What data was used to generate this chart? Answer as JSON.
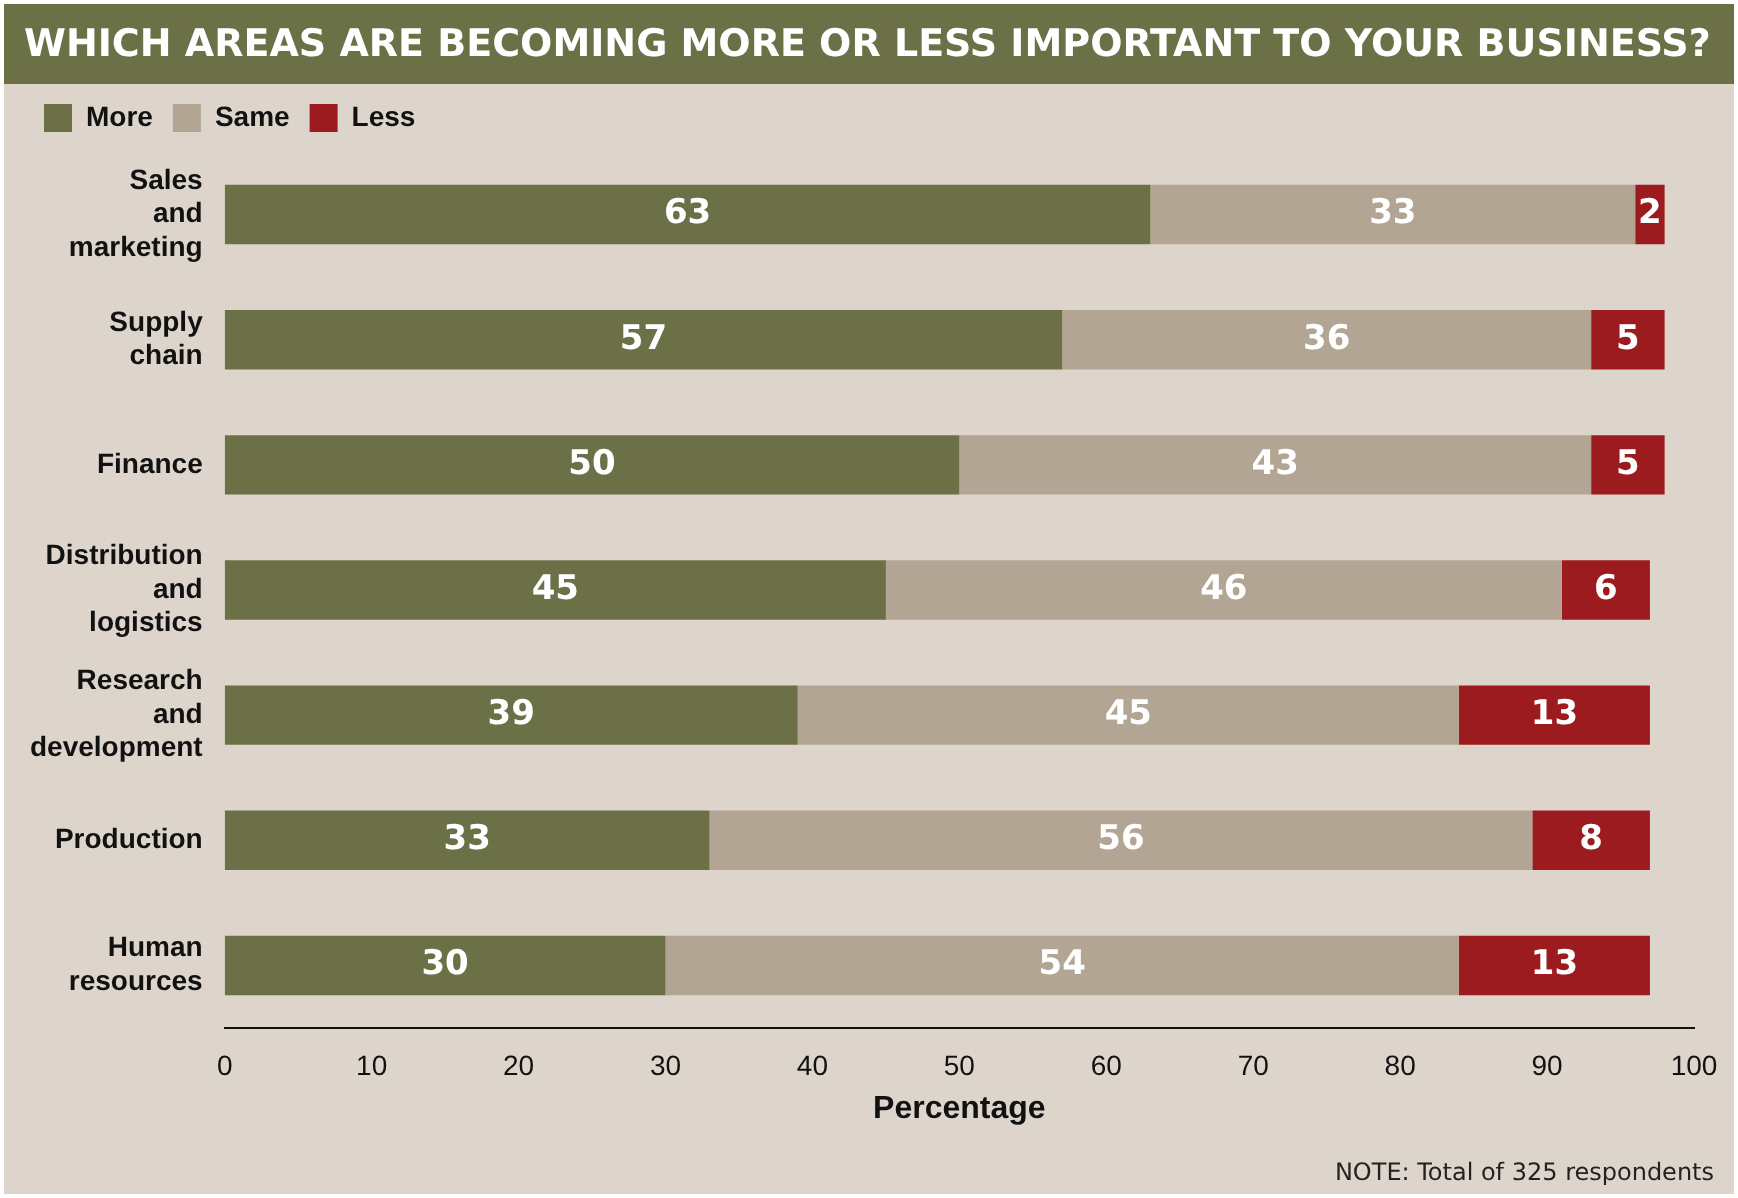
{
  "chart_data": {
    "type": "bar",
    "orientation": "horizontal",
    "stacked": true,
    "title": "WHICH AREAS ARE BECOMING MORE OR LESS IMPORTANT TO YOUR BUSINESS?",
    "xlabel": "Percentage",
    "categories": [
      "Sales and marketing",
      "Supply chain",
      "Finance",
      "Distribution and logistics",
      "Research and development",
      "Production",
      "Human resources"
    ],
    "series": [
      {
        "name": "More",
        "color": "#6b7047",
        "values": [
          63,
          57,
          50,
          45,
          39,
          33,
          30
        ]
      },
      {
        "name": "Same",
        "color": "#b3a594",
        "values": [
          33,
          36,
          43,
          46,
          45,
          56,
          54
        ]
      },
      {
        "name": "Less",
        "color": "#9b1b1e",
        "values": [
          2,
          5,
          5,
          6,
          13,
          8,
          13
        ]
      }
    ],
    "xlim": [
      0,
      100
    ],
    "xticks": [
      0,
      10,
      20,
      30,
      40,
      50,
      60,
      70,
      80,
      90,
      100
    ],
    "data_labels": true,
    "legend": "top left",
    "grid": false,
    "annotations": [
      "NOTE: Total of 325 respondents"
    ]
  }
}
